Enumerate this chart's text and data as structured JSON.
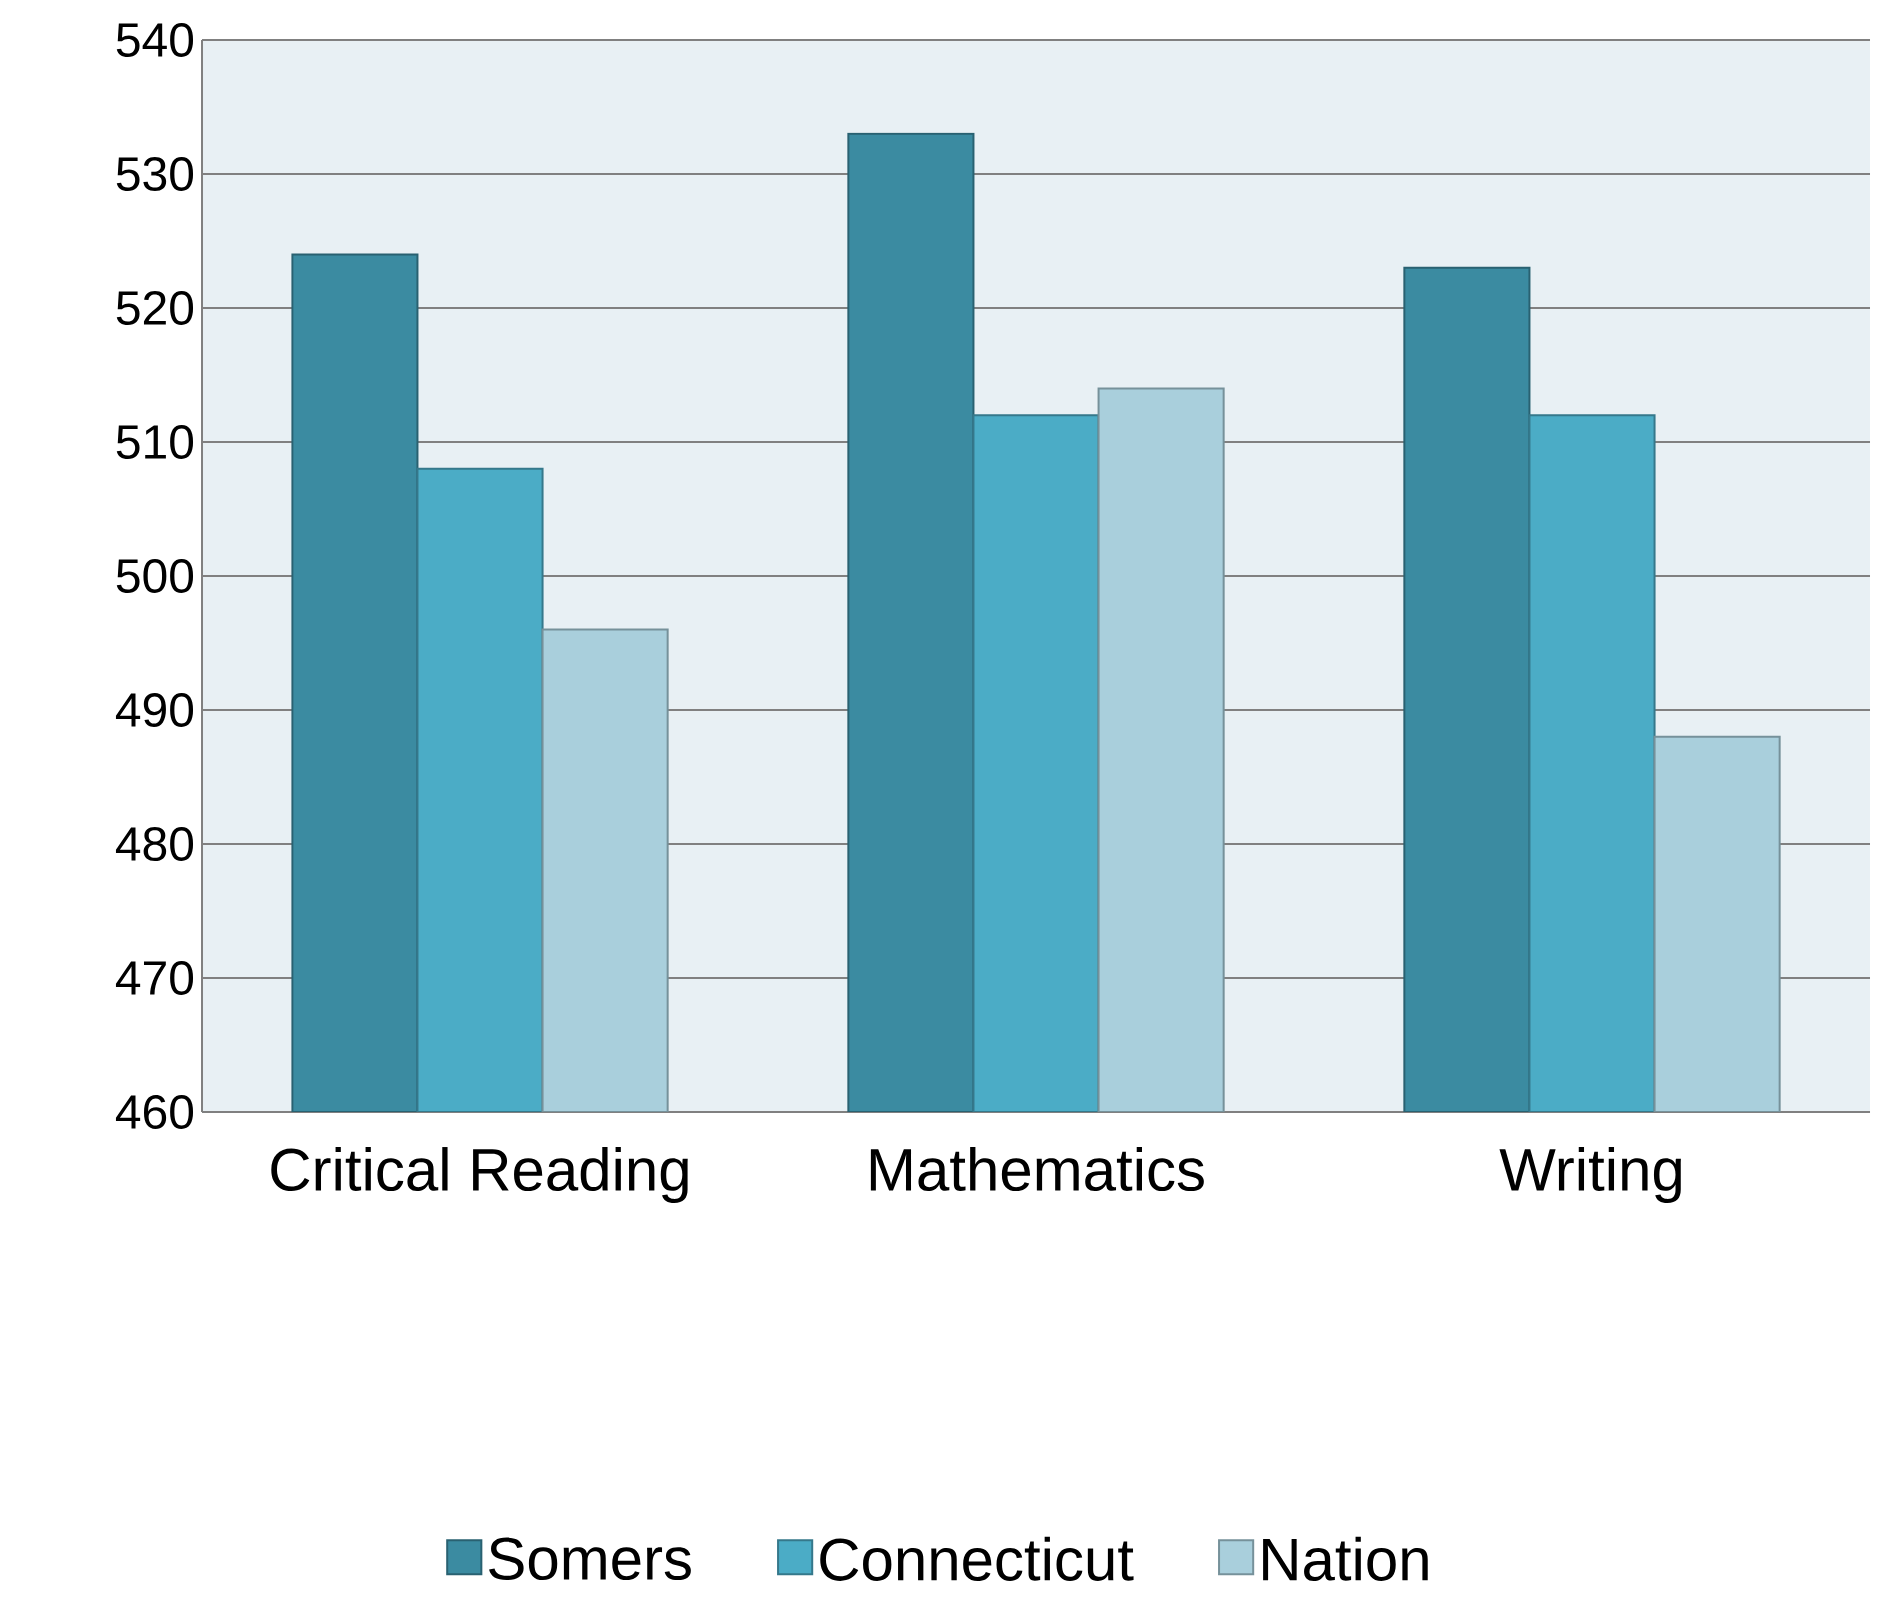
{
  "chart_data": {
    "type": "bar",
    "categories": [
      "Critical Reading",
      "Mathematics",
      "Writing"
    ],
    "series": [
      {
        "name": "Somers",
        "color": "#3b8ba1",
        "values": [
          524,
          533,
          523
        ]
      },
      {
        "name": "Connecticut",
        "color": "#4bacc6",
        "values": [
          508,
          512,
          512
        ]
      },
      {
        "name": "Nation",
        "color": "#a9cfdc",
        "values": [
          496,
          514,
          488
        ]
      }
    ],
    "ylim": [
      460,
      540
    ],
    "yticks": [
      460,
      470,
      480,
      490,
      500,
      510,
      520,
      530,
      540
    ],
    "grid": "y",
    "legend": "bottom"
  }
}
